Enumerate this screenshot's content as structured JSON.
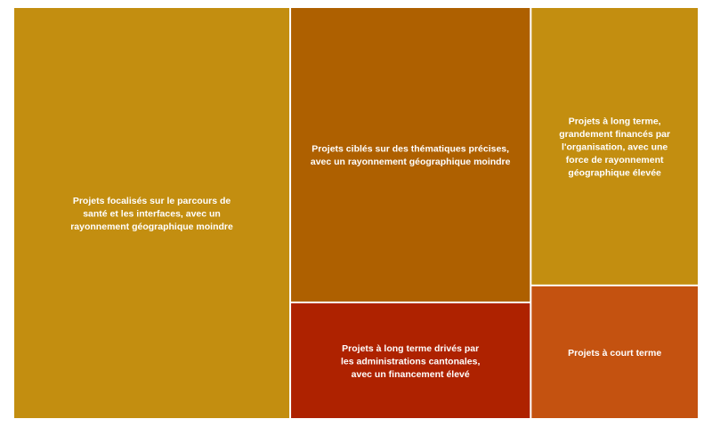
{
  "chart_data": {
    "type": "treemap",
    "title": "",
    "tiles": [
      {
        "label": "Projets focalisés sur le parcours de santé et les interfaces, avec un rayonnement géographique moindre",
        "lines": [
          "Projets focalisés sur le parcours de",
          "santé et les interfaces, avec un",
          "rayonnement géographique moindre"
        ],
        "value": 30.5,
        "color": "#C38E10"
      },
      {
        "label": "Projets ciblés sur des thématiques précises, avec un rayonnement géographique moindre",
        "lines": [
          "Projets ciblés sur des thématiques précises,",
          "avec un rayonnement géographique moindre"
        ],
        "value": 19.0,
        "color": "#AE6000"
      },
      {
        "label": "Projets à long terme drivés par les administrations cantonales, avec un financement élevé",
        "lines": [
          "Projets à long terme drivés par",
          "les administrations cantonales,",
          "avec un financement élevé"
        ],
        "value": 7.5,
        "color": "#AE2200"
      },
      {
        "label": "Projets à long terme, grandement financés par l'organisation, avec une force de rayonnement géographique élevée",
        "lines": [
          "Projets à long terme,",
          "grandement financés par",
          "l'organisation, avec une",
          "force de rayonnement",
          "géographique élevée"
        ],
        "value": 12.5,
        "color": "#C38E10"
      },
      {
        "label": "Projets à court terme",
        "lines": [
          "Projets à court terme"
        ],
        "value": 6.0,
        "color": "#C45210"
      }
    ]
  }
}
